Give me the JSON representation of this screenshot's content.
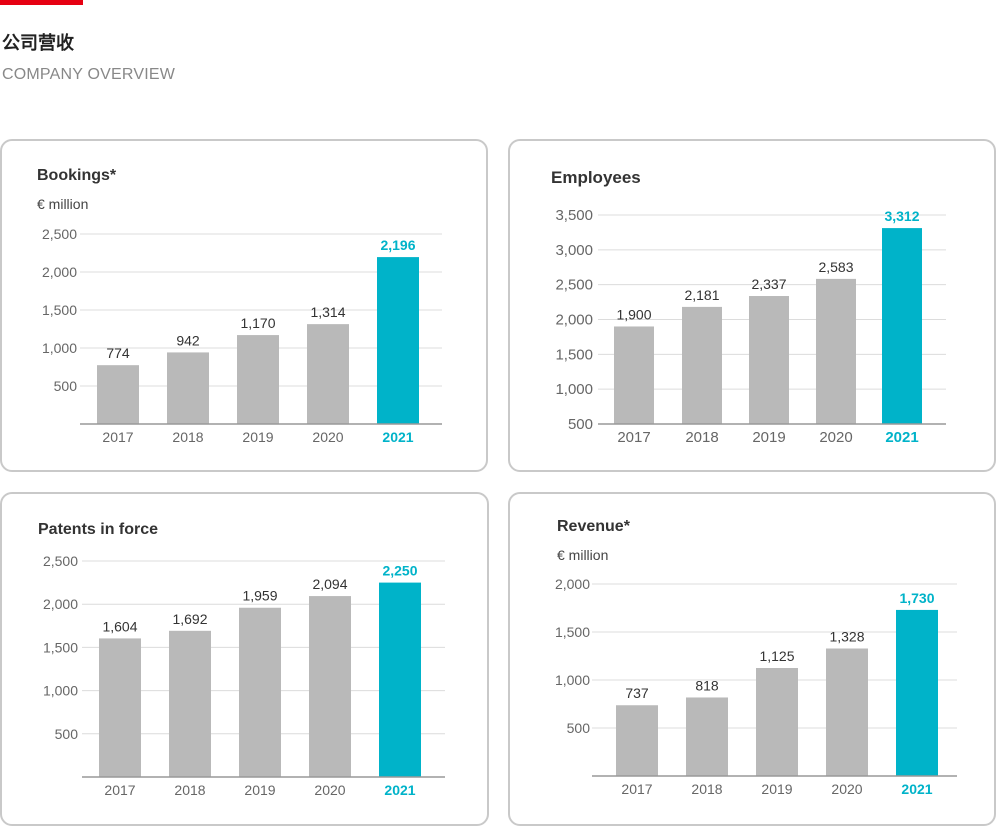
{
  "header": {
    "title": "公司营收",
    "subtitle": "COMPANY OVERVIEW"
  },
  "colors": {
    "accent_bar": "#e60012",
    "bar_default": "#b9b9b9",
    "bar_highlight": "#00b3c9",
    "grid": "#dcdcdc",
    "axis": "#999999"
  },
  "chart_data": [
    {
      "type": "bar",
      "title": "Bookings*",
      "unit": "€ million",
      "categories": [
        "2017",
        "2018",
        "2019",
        "2020",
        "2021"
      ],
      "values": [
        774,
        942,
        1170,
        1314,
        2196
      ],
      "value_labels": [
        "774",
        "942",
        "1,170",
        "1,314",
        "2,196"
      ],
      "yticks": [
        500,
        1000,
        1500,
        2000,
        2500
      ],
      "ytick_labels": [
        "500",
        "1,000",
        "1,500",
        "2,000",
        "2,500"
      ],
      "ylim": [
        0,
        2500
      ],
      "highlight_index": 4,
      "grid": true
    },
    {
      "type": "bar",
      "title": "Employees",
      "categories": [
        "2017",
        "2018",
        "2019",
        "2020",
        "2021"
      ],
      "values": [
        1900,
        2181,
        2337,
        2583,
        3312
      ],
      "value_labels": [
        "1,900",
        "2,181",
        "2,337",
        "2,583",
        "3,312"
      ],
      "yticks": [
        500,
        1000,
        1500,
        2000,
        2500,
        3000,
        3500
      ],
      "ytick_labels": [
        "500",
        "1,000",
        "1,500",
        "2,000",
        "2,500",
        "3,000",
        "3,500"
      ],
      "ylim": [
        500,
        3500
      ],
      "highlight_index": 4,
      "grid": true
    },
    {
      "type": "bar",
      "title": "Patents in force",
      "categories": [
        "2017",
        "2018",
        "2019",
        "2020",
        "2021"
      ],
      "values": [
        1604,
        1692,
        1959,
        2094,
        2250
      ],
      "value_labels": [
        "1,604",
        "1,692",
        "1,959",
        "2,094",
        "2,250"
      ],
      "yticks": [
        500,
        1000,
        1500,
        2000,
        2500
      ],
      "ytick_labels": [
        "500",
        "1,000",
        "1,500",
        "2,000",
        "2,500"
      ],
      "ylim": [
        0,
        2500
      ],
      "highlight_index": 4,
      "grid": true
    },
    {
      "type": "bar",
      "title": "Revenue*",
      "unit": "€ million",
      "categories": [
        "2017",
        "2018",
        "2019",
        "2020",
        "2021"
      ],
      "values": [
        737,
        818,
        1125,
        1328,
        1730
      ],
      "value_labels": [
        "737",
        "818",
        "1,125",
        "1,328",
        "1,730"
      ],
      "yticks": [
        500,
        1000,
        1500,
        2000
      ],
      "ytick_labels": [
        "500",
        "1,000",
        "1,500",
        "2,000"
      ],
      "ylim": [
        0,
        2000
      ],
      "highlight_index": 4,
      "grid": true
    }
  ]
}
